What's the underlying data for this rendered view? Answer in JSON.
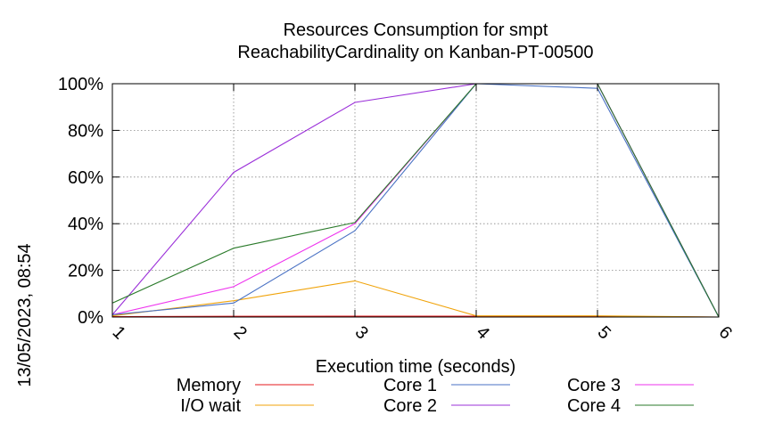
{
  "chart_data": {
    "type": "line",
    "title": "Resources Consumption for smpt",
    "subtitle": "ReachabilityCardinality on Kanban-PT-00500",
    "xlabel": "Execution time (seconds)",
    "ylabel": "",
    "side_label": "13/05/2023, 08:54",
    "x": [
      1,
      2,
      3,
      4,
      5,
      6
    ],
    "xlim": [
      1,
      6
    ],
    "ylim": [
      0,
      100
    ],
    "x_ticks": [
      "1",
      "2",
      "3",
      "4",
      "5",
      "6"
    ],
    "y_ticks": [
      {
        "value": 0,
        "label": "0%"
      },
      {
        "value": 20,
        "label": "20%"
      },
      {
        "value": 40,
        "label": "40%"
      },
      {
        "value": 60,
        "label": "60%"
      },
      {
        "value": 80,
        "label": "80%"
      },
      {
        "value": 100,
        "label": "100%"
      }
    ],
    "grid": true,
    "legend_position": "bottom",
    "series": [
      {
        "name": "Memory",
        "color": "#e41a1c",
        "values": [
          0.2,
          0.3,
          0.4,
          0.4,
          0.3,
          0.0
        ]
      },
      {
        "name": "I/O wait",
        "color": "#f0a30a",
        "values": [
          0.5,
          7,
          15.5,
          0.5,
          0.5,
          0
        ]
      },
      {
        "name": "Core 1",
        "color": "#4a72c4",
        "values": [
          1,
          6,
          37,
          100,
          98,
          0
        ]
      },
      {
        "name": "Core 2",
        "color": "#9b30d9",
        "values": [
          1,
          62,
          92,
          100,
          100,
          0
        ]
      },
      {
        "name": "Core 3",
        "color": "#ee33ee",
        "values": [
          1,
          13,
          40,
          100,
          100,
          0
        ]
      },
      {
        "name": "Core 4",
        "color": "#2a7a2a",
        "values": [
          6,
          29.5,
          40.5,
          100,
          100,
          0
        ]
      }
    ]
  }
}
